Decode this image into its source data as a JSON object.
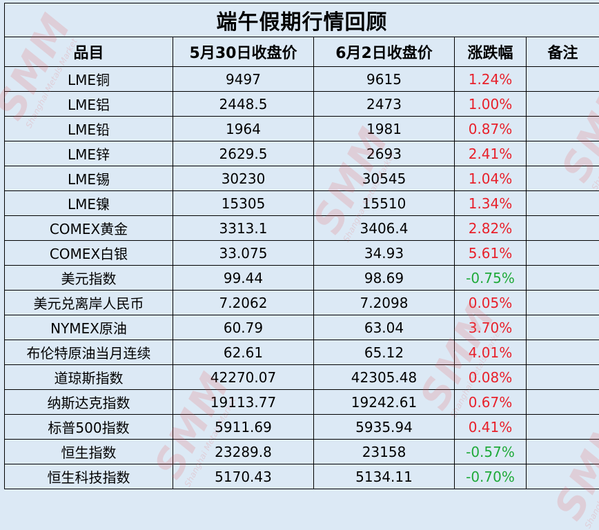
{
  "title": "端午假期行情回顾",
  "columns": [
    "品目",
    "5月30日收盘价",
    "6月2日收盘价",
    "涨跌幅",
    "备注"
  ],
  "rows": [
    {
      "item": "LME铜",
      "close_0530": "9497",
      "close_0602": "9615",
      "change": "1.24%",
      "dir": "up",
      "note": ""
    },
    {
      "item": "LME铝",
      "close_0530": "2448.5",
      "close_0602": "2473",
      "change": "1.00%",
      "dir": "up",
      "note": ""
    },
    {
      "item": "LME铅",
      "close_0530": "1964",
      "close_0602": "1981",
      "change": "0.87%",
      "dir": "up",
      "note": ""
    },
    {
      "item": "LME锌",
      "close_0530": "2629.5",
      "close_0602": "2693",
      "change": "2.41%",
      "dir": "up",
      "note": ""
    },
    {
      "item": "LME锡",
      "close_0530": "30230",
      "close_0602": "30545",
      "change": "1.04%",
      "dir": "up",
      "note": ""
    },
    {
      "item": "LME镍",
      "close_0530": "15305",
      "close_0602": "15510",
      "change": "1.34%",
      "dir": "up",
      "note": ""
    },
    {
      "item": "COMEX黄金",
      "close_0530": "3313.1",
      "close_0602": "3406.4",
      "change": "2.82%",
      "dir": "up",
      "note": ""
    },
    {
      "item": "COMEX白银",
      "close_0530": "33.075",
      "close_0602": "34.93",
      "change": "5.61%",
      "dir": "up",
      "note": ""
    },
    {
      "item": "美元指数",
      "close_0530": "99.44",
      "close_0602": "98.69",
      "change": "-0.75%",
      "dir": "down",
      "note": ""
    },
    {
      "item": "美元兑离岸人民币",
      "close_0530": "7.2062",
      "close_0602": "7.2098",
      "change": "0.05%",
      "dir": "up",
      "note": ""
    },
    {
      "item": "NYMEX原油",
      "close_0530": "60.79",
      "close_0602": "63.04",
      "change": "3.70%",
      "dir": "up",
      "note": ""
    },
    {
      "item": "布伦特原油当月连续",
      "close_0530": "62.61",
      "close_0602": "65.12",
      "change": "4.01%",
      "dir": "up",
      "note": ""
    },
    {
      "item": "道琼斯指数",
      "close_0530": "42270.07",
      "close_0602": "42305.48",
      "change": "0.08%",
      "dir": "up",
      "note": ""
    },
    {
      "item": "纳斯达克指数",
      "close_0530": "19113.77",
      "close_0602": "19242.61",
      "change": "0.67%",
      "dir": "up",
      "note": ""
    },
    {
      "item": "标普500指数",
      "close_0530": "5911.69",
      "close_0602": "5935.94",
      "change": "0.41%",
      "dir": "up",
      "note": ""
    },
    {
      "item": "恒生指数",
      "close_0530": "23289.8",
      "close_0602": "23158",
      "change": "-0.57%",
      "dir": "down",
      "note": ""
    },
    {
      "item": "恒生科技指数",
      "close_0530": "5170.43",
      "close_0602": "5134.11",
      "change": "-0.70%",
      "dir": "down",
      "note": ""
    }
  ],
  "colors": {
    "up": "#e8202a",
    "down": "#1faa3a",
    "background": "#dce9f5"
  },
  "watermark": {
    "text": "SMM",
    "subtext": "Shanghai Metals Market"
  }
}
